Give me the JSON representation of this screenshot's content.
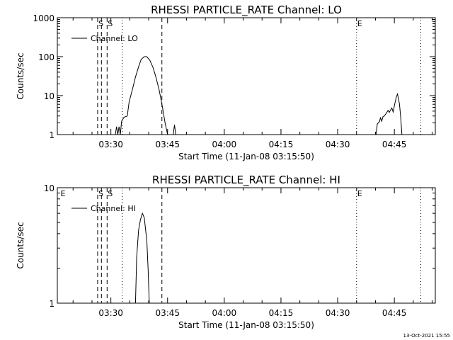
{
  "footer": {
    "timestamp": "13-Oct-2021 15:55"
  },
  "chart_data": [
    {
      "type": "line",
      "title": "RHESSI PARTICLE_RATE Channel: LO",
      "xlabel": "Start Time (11-Jan-08 03:15:50)",
      "ylabel": "Counts/sec",
      "y_scale": "log",
      "ylim": [
        1,
        1000
      ],
      "y_ticks": [
        1,
        10,
        100,
        1000
      ],
      "y_tick_labels": [
        "1",
        "10",
        "100",
        "1000"
      ],
      "xlim": [
        "03:15:50",
        "04:55:50"
      ],
      "x_ticks": [
        "03:30",
        "03:45",
        "04:00",
        "04:15",
        "04:30",
        "04:45"
      ],
      "grid": false,
      "legend": {
        "position": "top-left",
        "entries": [
          "Channel: LO"
        ]
      },
      "markers": [
        {
          "label": "S",
          "time": "03:26:30",
          "style": "dashed"
        },
        {
          "label": "",
          "time": "03:27:30",
          "style": "dashed"
        },
        {
          "label": "S",
          "time": "03:29:00",
          "style": "dashed"
        },
        {
          "label": "",
          "time": "03:33:00",
          "style": "dotted"
        },
        {
          "label": "",
          "time": "03:43:30",
          "style": "dashed"
        },
        {
          "label": "E",
          "time": "04:35:00",
          "style": "dotted"
        },
        {
          "label": "",
          "time": "04:52:00",
          "style": "dotted"
        }
      ],
      "series": [
        {
          "name": "Channel: LO",
          "segments": [
            [
              [
                "03:31:10",
                1
              ],
              [
                "03:31:30",
                1.6
              ],
              [
                "03:31:50",
                1
              ],
              [
                "03:32:10",
                1.6
              ],
              [
                "03:32:30",
                1
              ],
              [
                "03:32:50",
                2.2
              ],
              [
                "03:33:30",
                2.8
              ],
              [
                "03:34:20",
                3
              ],
              [
                "03:34:50",
                7
              ],
              [
                "03:35:40",
                14
              ],
              [
                "03:36:30",
                30
              ],
              [
                "03:37:20",
                55
              ],
              [
                "03:38:00",
                85
              ],
              [
                "03:38:50",
                100
              ],
              [
                "03:39:30",
                100
              ],
              [
                "03:40:20",
                80
              ],
              [
                "03:41:10",
                52
              ],
              [
                "03:42:00",
                28
              ],
              [
                "03:42:50",
                13
              ],
              [
                "03:43:40",
                5
              ],
              [
                "03:44:20",
                2
              ],
              [
                "03:45:00",
                1
              ]
            ],
            [
              [
                "03:46:30",
                1
              ],
              [
                "03:46:50",
                1.8
              ],
              [
                "03:47:10",
                1
              ]
            ],
            [
              [
                "04:40:10",
                1
              ],
              [
                "04:40:30",
                1.9
              ],
              [
                "04:41:00",
                2.1
              ],
              [
                "04:41:20",
                2.7
              ],
              [
                "04:41:40",
                2.2
              ],
              [
                "04:42:00",
                2.9
              ],
              [
                "04:42:20",
                3
              ],
              [
                "04:42:50",
                3.5
              ],
              [
                "04:43:20",
                4.2
              ],
              [
                "04:43:40",
                3.7
              ],
              [
                "04:44:00",
                4.3
              ],
              [
                "04:44:20",
                4.8
              ],
              [
                "04:44:40",
                3.8
              ],
              [
                "04:45:10",
                6.5
              ],
              [
                "04:45:30",
                9
              ],
              [
                "04:45:50",
                11
              ],
              [
                "04:46:20",
                6.2
              ],
              [
                "04:46:40",
                3
              ],
              [
                "04:47:00",
                1
              ]
            ]
          ]
        }
      ]
    },
    {
      "type": "line",
      "title": "RHESSI PARTICLE_RATE Channel: HI",
      "xlabel": "Start Time (11-Jan-08 03:15:50)",
      "ylabel": "Counts/sec",
      "y_scale": "log",
      "ylim": [
        1,
        10
      ],
      "y_ticks": [
        1,
        10
      ],
      "y_tick_labels": [
        "1",
        "10"
      ],
      "xlim": [
        "03:15:50",
        "04:55:50"
      ],
      "x_ticks": [
        "03:30",
        "03:45",
        "04:00",
        "04:15",
        "04:30",
        "04:45"
      ],
      "grid": false,
      "legend": {
        "position": "top-left",
        "entries": [
          "Channel: HI"
        ]
      },
      "markers": [
        {
          "label": "E",
          "time": "03:16:30",
          "style": "none"
        },
        {
          "label": "S",
          "time": "03:26:30",
          "style": "dashed"
        },
        {
          "label": "",
          "time": "03:27:30",
          "style": "dashed"
        },
        {
          "label": "S",
          "time": "03:29:00",
          "style": "dashed"
        },
        {
          "label": "",
          "time": "03:33:00",
          "style": "dotted"
        },
        {
          "label": "",
          "time": "03:43:30",
          "style": "dashed"
        },
        {
          "label": "E",
          "time": "04:35:00",
          "style": "dotted"
        },
        {
          "label": "",
          "time": "04:52:00",
          "style": "dotted"
        }
      ],
      "series": [
        {
          "name": "Channel: HI",
          "segments": [
            [
              [
                "03:36:30",
                1
              ],
              [
                "03:36:50",
                2.5
              ],
              [
                "03:37:20",
                4.3
              ],
              [
                "03:37:50",
                5.3
              ],
              [
                "03:38:20",
                6
              ],
              [
                "03:38:50",
                5.5
              ],
              [
                "03:39:30",
                3.5
              ],
              [
                "03:39:50",
                2
              ],
              [
                "03:40:10",
                1
              ]
            ]
          ]
        }
      ]
    }
  ]
}
